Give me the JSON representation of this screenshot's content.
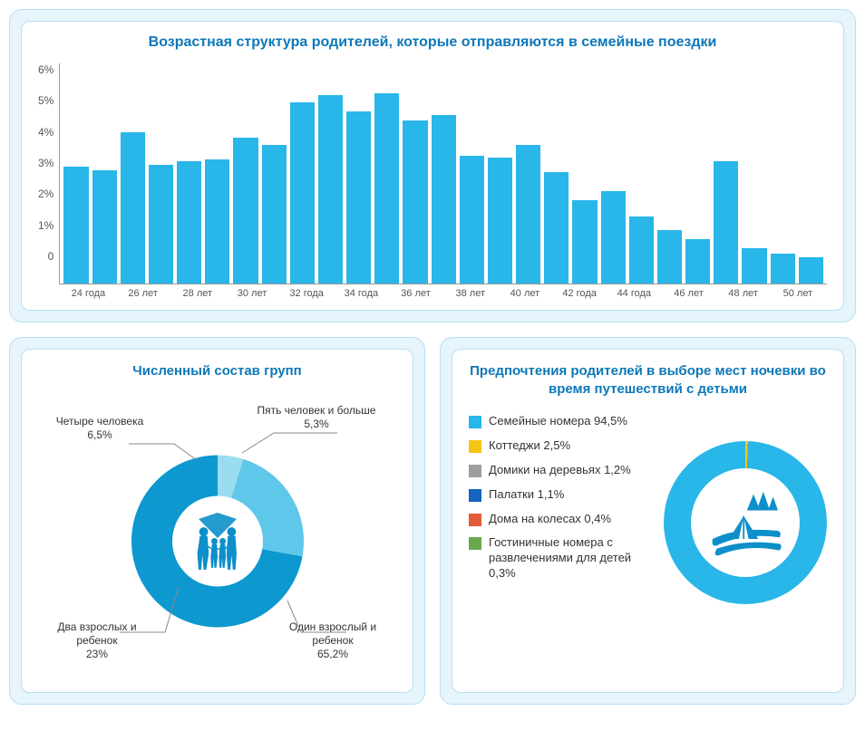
{
  "colors": {
    "panel_bg": "#e6f4fb",
    "panel_border": "#b8dff2",
    "title": "#0d78b8",
    "bar": "#29b6e8",
    "axis": "#999999",
    "text": "#333333"
  },
  "bar_chart": {
    "type": "bar",
    "title": "Возрастная структура родителей, которые отправляются в семейные поездки",
    "title_fontsize": 16,
    "y_ticks": [
      "6%",
      "5%",
      "4%",
      "3%",
      "2%",
      "1%",
      "0"
    ],
    "ylim": [
      0,
      6.2
    ],
    "x_labels_shown": [
      "24 года",
      "26 лет",
      "28 лет",
      "30 лет",
      "32 года",
      "34 года",
      "36 лет",
      "38 лет",
      "40 лет",
      "42 года",
      "44 года",
      "46 лет",
      "48 лет",
      "50 лет"
    ],
    "ages": [
      24,
      25,
      26,
      27,
      28,
      29,
      30,
      31,
      32,
      33,
      34,
      35,
      36,
      37,
      38,
      39,
      40,
      41,
      42,
      43,
      44,
      45,
      46,
      47,
      48,
      49,
      50
    ],
    "values": [
      3.3,
      3.2,
      4.25,
      3.35,
      3.45,
      3.5,
      4.1,
      3.9,
      5.1,
      5.3,
      4.85,
      5.35,
      4.6,
      4.75,
      3.6,
      3.55,
      3.9,
      3.15,
      2.35,
      2.6,
      1.9,
      1.5,
      1.25,
      3.45,
      1.0,
      0.85,
      0.75
    ],
    "bar_color": "#29b6e8",
    "background_color": "#ffffff",
    "label_fontsize": 11
  },
  "group_chart": {
    "type": "donut",
    "title": "Численный состав групп",
    "segments": [
      {
        "label": "Один взрослый и ребенок",
        "value": 65.2,
        "value_text": "65,2%",
        "color": "#0d98cf"
      },
      {
        "label": "Два взрослых и ребенок",
        "value": 23.0,
        "value_text": "23%",
        "color": "#5fc7ea"
      },
      {
        "label": "Четыре человека",
        "value": 6.5,
        "value_text": "6,5%",
        "color": "#9adcf0"
      },
      {
        "label": "Пять человек и больше",
        "value": 5.3,
        "value_text": "5,3%",
        "color": "#c9ebf7"
      }
    ],
    "hole_ratio": 0.53,
    "center_icon": "family-silhouette"
  },
  "pref_chart": {
    "type": "donut",
    "title": "Предпочтения родителей в выборе мест ночевки во время путешествий с детьми",
    "segments": [
      {
        "label": "Семейные номера",
        "value": 94.5,
        "value_text": "94,5%",
        "color": "#29b6e8"
      },
      {
        "label": "Коттеджи",
        "value": 2.5,
        "value_text": "2,5%",
        "color": "#f6c514"
      },
      {
        "label": "Домики на деревьях",
        "value": 1.2,
        "value_text": "1,2%",
        "color": "#9e9e9e"
      },
      {
        "label": "Палатки",
        "value": 1.1,
        "value_text": "1,1%",
        "color": "#1565c0"
      },
      {
        "label": "Дома на колесах",
        "value": 0.4,
        "value_text": "0,4%",
        "color": "#e25b3a"
      },
      {
        "label": "Гостиничные номера с развлечениями для детей",
        "value": 0.3,
        "value_text": "0,3%",
        "color": "#6aa84f"
      }
    ],
    "hole_ratio": 0.67,
    "center_icon": "camping-scene"
  }
}
